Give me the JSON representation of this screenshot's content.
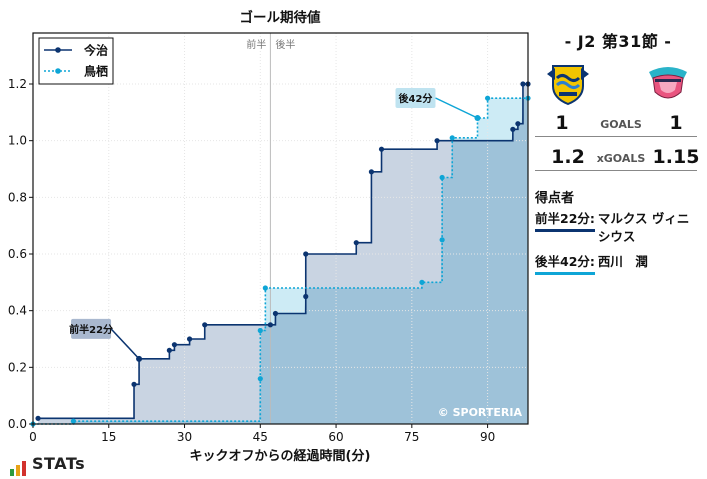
{
  "chart_data": {
    "type": "line",
    "title": "ゴール期待値",
    "xlabel": "キックオフからの経過時間(分)",
    "ylabel": "",
    "xlim": [
      0,
      98
    ],
    "ylim": [
      0,
      1.38
    ],
    "xticks": [
      0,
      15,
      30,
      45,
      60,
      75,
      90
    ],
    "yticks": [
      0.0,
      0.2,
      0.4,
      0.6,
      0.8,
      1.0,
      1.2
    ],
    "ytick_labels": [
      "0.0",
      "0.2",
      "0.4",
      "0.6",
      "0.8",
      "1.0",
      "1.2"
    ],
    "half_time_minute": 47,
    "half_labels": [
      "前半",
      "後半"
    ],
    "watermark": "© SPORTERIA",
    "legend_position": "top-left",
    "series": [
      {
        "name": "今治",
        "style": "solid",
        "color": "#0b3470",
        "fill": "#c9d4e2",
        "x": [
          1,
          20,
          21,
          27,
          28,
          31,
          34,
          47,
          48,
          54,
          54,
          64,
          67,
          69,
          80,
          95,
          96,
          97,
          98
        ],
        "y": [
          0.02,
          0.14,
          0.23,
          0.26,
          0.28,
          0.3,
          0.35,
          0.35,
          0.39,
          0.45,
          0.6,
          0.64,
          0.89,
          0.97,
          1.0,
          1.04,
          1.06,
          1.2,
          1.2
        ]
      },
      {
        "name": "鳥栖",
        "style": "dotted",
        "color": "#0ea5d6",
        "fill": "#cdebf5",
        "x": [
          0,
          8,
          45,
          45,
          46,
          77,
          81,
          81,
          83,
          88,
          90,
          98
        ],
        "y": [
          0.0,
          0.01,
          0.16,
          0.33,
          0.48,
          0.5,
          0.65,
          0.87,
          1.01,
          1.08,
          1.15,
          1.15
        ]
      }
    ],
    "annotations": [
      {
        "text": "前半22分",
        "series": "今治",
        "x": 21,
        "y": 0.23
      },
      {
        "text": "後42分",
        "series": "鳥栖",
        "x": 88,
        "y": 1.08
      }
    ]
  },
  "match": {
    "title": "-  J2 第31節  -",
    "home": {
      "name": "今治",
      "goals": "1",
      "xg": "1.2",
      "crest": "fc-imabari-crest-icon"
    },
    "away": {
      "name": "鳥栖",
      "goals": "1",
      "xg": "1.15",
      "crest": "sagan-tosu-crest-icon"
    },
    "goals_label": "GOALS",
    "xgoals_label": "xGOALS"
  },
  "scorers": {
    "heading": "得点者",
    "home": [
      {
        "time": "前半22分:",
        "name": "マルクス ヴィニシウス"
      }
    ],
    "away": [
      {
        "time": "後半42分:",
        "name": "西川　潤"
      }
    ]
  },
  "branding": {
    "logo_text": "STATs",
    "logo_colors": [
      "#2e9a3e",
      "#e8a317",
      "#d2322d"
    ]
  }
}
